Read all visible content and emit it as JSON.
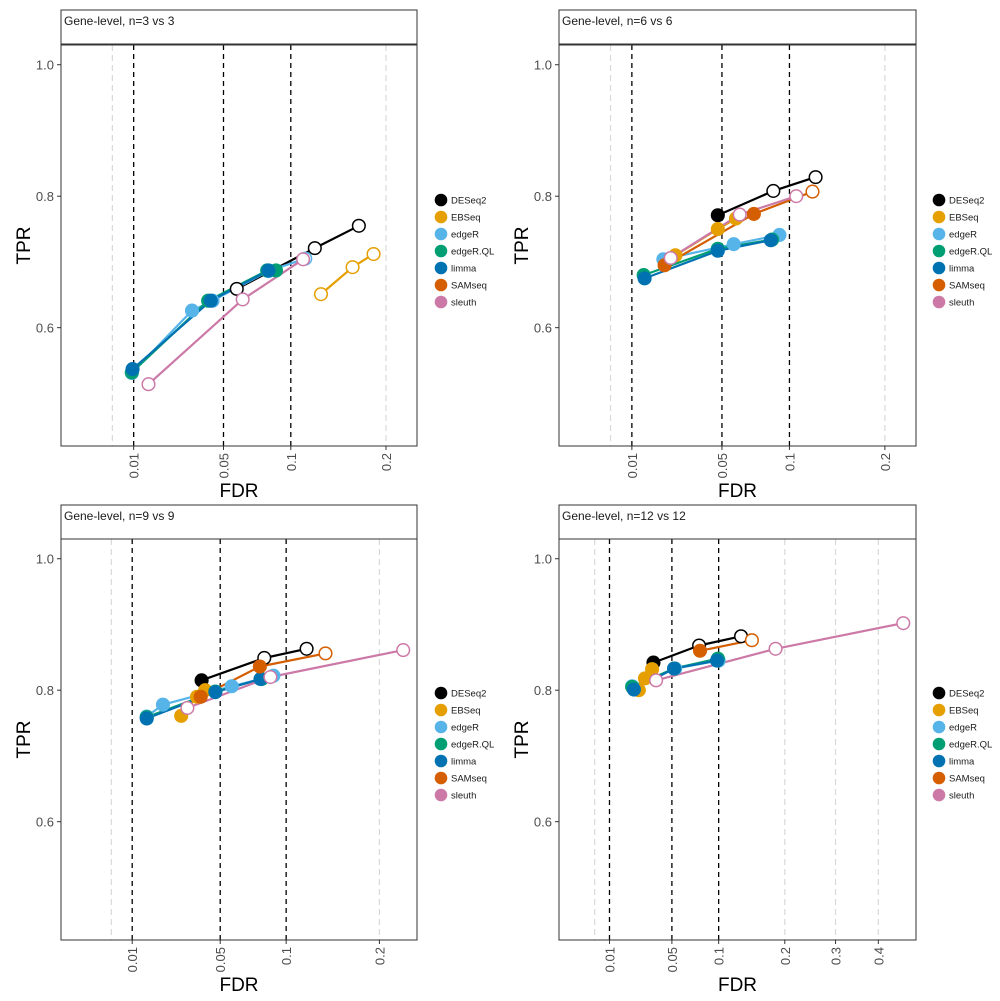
{
  "chart_data": [
    {
      "type": "line",
      "title": "Gene-level, n=3 vs 3",
      "xlabel": "FDR",
      "ylabel": "TPR",
      "x_scale": "sqrt",
      "x_ticks": [
        0.01,
        0.05,
        0.1,
        0.2
      ],
      "x_tick_labels": [
        "0.01",
        "0.05",
        "0.1",
        "0.2"
      ],
      "y_ticks": [
        0.6,
        0.8,
        1.0
      ],
      "y_tick_labels": [
        "0.6",
        "0.8",
        "1.0"
      ],
      "xlim": [
        0,
        0.24
      ],
      "ylim": [
        0.42,
        1.03
      ],
      "threshold_lines": [
        0.01,
        0.05,
        0.1
      ],
      "grid_lines": [
        0.005,
        0.2
      ],
      "legend_position": "right",
      "series": [
        {
          "name": "DESeq2",
          "color": "#000000",
          "x": [
            0.0585,
            0.122,
            0.168
          ],
          "y": [
            0.659,
            0.721,
            0.755
          ]
        },
        {
          "name": "EBSeq",
          "color": "#E69F00",
          "x": [
            0.128,
            0.161,
            0.185
          ],
          "y": [
            0.651,
            0.692,
            0.712
          ]
        },
        {
          "name": "edgeR",
          "color": "#56B4E9",
          "x": [
            0.0095,
            0.0325,
            0.0435,
            0.0815,
            0.113
          ],
          "y": [
            0.531,
            0.626,
            0.641,
            0.686,
            0.705
          ]
        },
        {
          "name": "edgeR.QL",
          "color": "#009E73",
          "x": [
            0.0095,
            0.041,
            0.0805,
            0.0875
          ],
          "y": [
            0.532,
            0.641,
            0.687,
            0.687
          ]
        },
        {
          "name": "limma",
          "color": "#0072B2",
          "x": [
            0.0097,
            0.0425,
            0.0815
          ],
          "y": [
            0.537,
            0.641,
            0.687
          ]
        },
        {
          "name": "SAMseq",
          "color": "#D55E00",
          "x": [],
          "y": []
        },
        {
          "name": "sleuth",
          "color": "#CC79A7",
          "x": [
            0.0145,
            0.0625,
            0.111
          ],
          "y": [
            0.514,
            0.643,
            0.704
          ]
        }
      ]
    },
    {
      "type": "line",
      "title": "Gene-level, n=6 vs 6",
      "xlabel": "FDR",
      "ylabel": "TPR",
      "x_scale": "sqrt",
      "x_ticks": [
        0.01,
        0.05,
        0.1,
        0.2
      ],
      "x_tick_labels": [
        "0.01",
        "0.05",
        "0.1",
        "0.2"
      ],
      "y_ticks": [
        0.6,
        0.8,
        1.0
      ],
      "y_tick_labels": [
        "0.6",
        "0.8",
        "1.0"
      ],
      "xlim": [
        0,
        0.24
      ],
      "ylim": [
        0.42,
        1.03
      ],
      "threshold_lines": [
        0.01,
        0.05,
        0.1
      ],
      "grid_lines": [
        0.005,
        0.2
      ],
      "legend_position": "right",
      "series": [
        {
          "name": "DESeq2",
          "color": "#000000",
          "x": [
            0.0475,
            0.0865,
            0.124
          ],
          "y": [
            0.771,
            0.808,
            0.829
          ]
        },
        {
          "name": "EBSeq",
          "color": "#E69F00",
          "x": [
            0.0255,
            0.0475,
            0.059
          ],
          "y": [
            0.71,
            0.75,
            0.766
          ]
        },
        {
          "name": "edgeR",
          "color": "#56B4E9",
          "x": [
            0.0205,
            0.0575,
            0.0915
          ],
          "y": [
            0.704,
            0.727,
            0.741
          ]
        },
        {
          "name": "edgeR.QL",
          "color": "#009E73",
          "x": [
            0.0135,
            0.0475,
            0.0855
          ],
          "y": [
            0.68,
            0.72,
            0.734
          ]
        },
        {
          "name": "limma",
          "color": "#0072B2",
          "x": [
            0.0138,
            0.0475,
            0.0845
          ],
          "y": [
            0.675,
            0.717,
            0.733
          ]
        },
        {
          "name": "SAMseq",
          "color": "#D55E00",
          "x": [
            0.021,
            0.0715,
            0.121
          ],
          "y": [
            0.695,
            0.773,
            0.807
          ]
        },
        {
          "name": "sleuth",
          "color": "#CC79A7",
          "x": [
            0.0235,
            0.0615,
            0.106
          ],
          "y": [
            0.706,
            0.772,
            0.8
          ]
        }
      ]
    },
    {
      "type": "line",
      "title": "Gene-level, n=9 vs 9",
      "xlabel": "FDR",
      "ylabel": "TPR",
      "x_scale": "sqrt",
      "x_ticks": [
        0.01,
        0.05,
        0.1,
        0.2
      ],
      "x_tick_labels": [
        "0.01",
        "0.05",
        "0.1",
        "0.2"
      ],
      "y_ticks": [
        0.6,
        0.8,
        1.0
      ],
      "y_tick_labels": [
        "0.6",
        "0.8",
        "1.0"
      ],
      "xlim": [
        0,
        0.25
      ],
      "ylim": [
        0.42,
        1.03
      ],
      "threshold_lines": [
        0.01,
        0.05,
        0.1
      ],
      "grid_lines": [
        0.005,
        0.2
      ],
      "legend_position": "right",
      "series": [
        {
          "name": "DESeq2",
          "color": "#000000",
          "x": [
            0.039,
            0.0815,
            0.119
          ],
          "y": [
            0.815,
            0.849,
            0.863
          ]
        },
        {
          "name": "EBSeq",
          "color": "#E69F00",
          "x": [
            0.0285,
            0.0365,
            0.041
          ],
          "y": [
            0.761,
            0.79,
            0.8
          ]
        },
        {
          "name": "edgeR",
          "color": "#56B4E9",
          "x": [
            0.0145,
            0.0205,
            0.0575,
            0.089
          ],
          "y": [
            0.76,
            0.778,
            0.806,
            0.822
          ]
        },
        {
          "name": "edgeR.QL",
          "color": "#009E73",
          "x": [
            0.0145,
            0.047,
            0.0795
          ],
          "y": [
            0.759,
            0.798,
            0.817
          ]
        },
        {
          "name": "limma",
          "color": "#0072B2",
          "x": [
            0.0145,
            0.047,
            0.0785
          ],
          "y": [
            0.757,
            0.797,
            0.817
          ]
        },
        {
          "name": "SAMseq",
          "color": "#D55E00",
          "x": [
            0.0385,
            0.078,
            0.138
          ],
          "y": [
            0.79,
            0.836,
            0.856
          ]
        },
        {
          "name": "sleuth",
          "color": "#CC79A7",
          "x": [
            0.0315,
            0.0865,
            0.231
          ],
          "y": [
            0.773,
            0.82,
            0.861
          ]
        }
      ]
    },
    {
      "type": "line",
      "title": "Gene-level, n=12 vs 12",
      "xlabel": "FDR",
      "ylabel": "TPR",
      "x_scale": "sqrt",
      "x_ticks": [
        0.01,
        0.05,
        0.1,
        0.2,
        0.3,
        0.4
      ],
      "x_tick_labels": [
        "0.01",
        "0.05",
        "0.1",
        "0.2",
        "0.3",
        "0.4"
      ],
      "y_ticks": [
        0.6,
        0.8,
        1.0
      ],
      "y_tick_labels": [
        "0.6",
        "0.8",
        "1.0"
      ],
      "xlim": [
        0,
        0.5
      ],
      "ylim": [
        0.42,
        1.03
      ],
      "threshold_lines": [
        0.01,
        0.05,
        0.1
      ],
      "grid_lines": [
        0.005,
        0.2,
        0.3,
        0.4
      ],
      "legend_position": "right",
      "series": [
        {
          "name": "DESeq2",
          "color": "#000000",
          "x": [
            0.035,
            0.077,
            0.13
          ],
          "y": [
            0.842,
            0.868,
            0.882
          ]
        },
        {
          "name": "EBSeq",
          "color": "#E69F00",
          "x": [
            0.025,
            0.029,
            0.034
          ],
          "y": [
            0.8,
            0.818,
            0.832
          ]
        },
        {
          "name": "edgeR",
          "color": "#56B4E9",
          "x": [
            0.021,
            0.053,
            0.1
          ],
          "y": [
            0.806,
            0.833,
            0.845
          ]
        },
        {
          "name": "edgeR.QL",
          "color": "#009E73",
          "x": [
            0.021,
            0.052,
            0.099
          ],
          "y": [
            0.805,
            0.833,
            0.848
          ]
        },
        {
          "name": "limma",
          "color": "#0072B2",
          "x": [
            0.022,
            0.052,
            0.098
          ],
          "y": [
            0.801,
            0.833,
            0.845
          ]
        },
        {
          "name": "SAMseq",
          "color": "#D55E00",
          "x": [
            0.078,
            0.146
          ],
          "y": [
            0.86,
            0.876
          ]
        },
        {
          "name": "sleuth",
          "color": "#CC79A7",
          "x": [
            0.037,
            0.184,
            0.465
          ],
          "y": [
            0.815,
            0.863,
            0.902
          ]
        }
      ]
    }
  ]
}
